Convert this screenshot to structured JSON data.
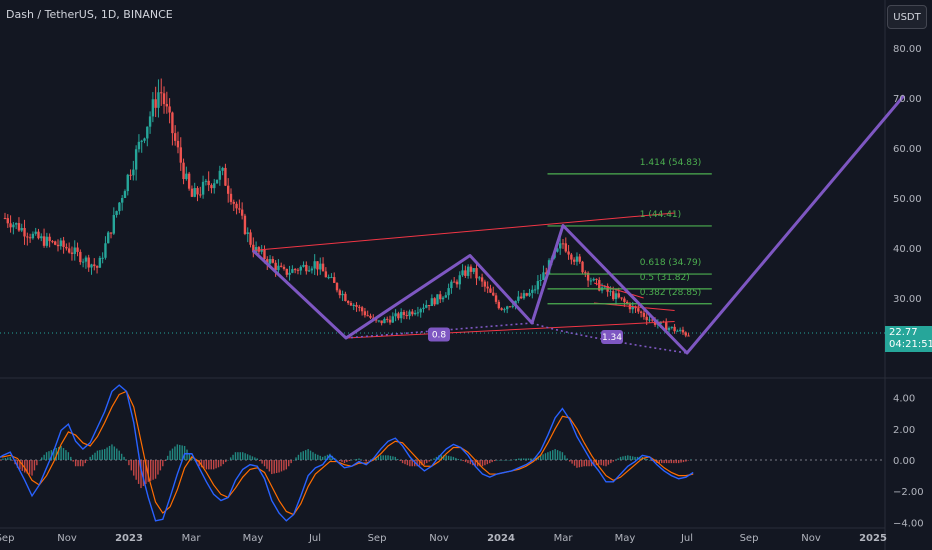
{
  "header": {
    "symbol_title": "Dash / TetherUS, 1D, BINANCE",
    "currency_button": "USDT"
  },
  "price_badge": {
    "price": "22.77",
    "countdown": "04:21:51"
  },
  "colors": {
    "background": "#131722",
    "up_candle": "#26a69a",
    "down_candle": "#ef5350",
    "pattern": "#7e57c2",
    "fib": "#4caf50",
    "trendline": "#f23645",
    "macd": "#2962ff",
    "signal": "#ff6d00"
  },
  "chart_data": [
    {
      "type": "candlestick",
      "name": "price",
      "yaxis_ticks": [
        "80.00",
        "70.00",
        "60.00",
        "50.00",
        "40.00",
        "30.00"
      ],
      "ylim": [
        18,
        86
      ],
      "grid": false,
      "xaxis_ticks": [
        "Sep",
        "Nov",
        "2023",
        "Mar",
        "May",
        "Jul",
        "Sep",
        "Nov",
        "2024",
        "Mar",
        "May",
        "Jul",
        "Sep",
        "Nov",
        "2025"
      ],
      "approx_close_path": [
        {
          "x": "Sep 2022",
          "y": 46
        },
        {
          "x": "Oct 2022",
          "y": 42
        },
        {
          "x": "Nov 2022",
          "y": 40
        },
        {
          "x": "Dec 2022",
          "y": 36
        },
        {
          "x": "Jan 2023",
          "y": 55
        },
        {
          "x": "Feb 2023",
          "y": 72
        },
        {
          "x": "Mar 2023",
          "y": 50
        },
        {
          "x": "Apr 2023",
          "y": 55
        },
        {
          "x": "May 2023",
          "y": 40
        },
        {
          "x": "Jun 2023",
          "y": 35
        },
        {
          "x": "Jul 2023",
          "y": 37
        },
        {
          "x": "Aug 2023",
          "y": 30
        },
        {
          "x": "Sep 2023",
          "y": 25
        },
        {
          "x": "Oct 2023",
          "y": 27
        },
        {
          "x": "Nov 2023",
          "y": 30
        },
        {
          "x": "Dec 2023",
          "y": 36
        },
        {
          "x": "Jan 2024",
          "y": 28
        },
        {
          "x": "Feb 2024",
          "y": 31
        },
        {
          "x": "Mar 2024",
          "y": 41
        },
        {
          "x": "Apr 2024",
          "y": 33
        },
        {
          "x": "May 2024",
          "y": 29
        },
        {
          "x": "Jun 2024",
          "y": 25
        },
        {
          "x": "Jul 2024",
          "y": 22.77
        }
      ],
      "fib_levels": [
        {
          "label": "1.414 (54.83)",
          "value": 54.83
        },
        {
          "label": "1 (44.41)",
          "value": 44.41
        },
        {
          "label": "0.618 (34.79)",
          "value": 34.79
        },
        {
          "label": "0.5 (31.82)",
          "value": 31.82
        },
        {
          "label": "0.382 (28.85)",
          "value": 28.85
        }
      ],
      "pattern_points": [
        {
          "x": "May 2023",
          "y": 39.5
        },
        {
          "x": "Aug 2023",
          "y": 22
        },
        {
          "x": "Dec 2023",
          "y": 38.5
        },
        {
          "x": "Feb 2024",
          "y": 25
        },
        {
          "x": "Mar 2024",
          "y": 44.5
        },
        {
          "x": "Jul 2024",
          "y": 19
        },
        {
          "x": "Feb 2025",
          "y": 70.5
        }
      ],
      "pattern_ratio_labels": [
        "0.8",
        "1.34"
      ],
      "last_price": 22.77
    },
    {
      "type": "line",
      "name": "macd",
      "yaxis_ticks": [
        "4.00",
        "2.00",
        "0.00",
        "−2.00",
        "−4.00"
      ],
      "ylim": [
        -4.2,
        5.2
      ],
      "series": [
        {
          "values": [
            0,
            0.3,
            0.5,
            -0.4,
            -1.3,
            -2.3,
            -1.6,
            -0.5,
            0.6,
            1.9,
            2.3,
            1.2,
            0.7,
            1.1,
            2.1,
            3.1,
            4.4,
            4.8,
            4.4,
            2.4,
            -0.6,
            -2.4,
            -3.9,
            -3.8,
            -2.4,
            -0.9,
            0.4,
            0.4,
            -0.5,
            -1.4,
            -2.2,
            -2.6,
            -2.4,
            -1.3,
            -0.6,
            -0.3,
            -0.4,
            -1.2,
            -2.6,
            -3.4,
            -3.9,
            -3.5,
            -2.3,
            -1.0,
            -0.5,
            -0.3,
            0.3,
            -0.1,
            -0.5,
            -0.4,
            -0.1,
            -0.3,
            0.1,
            0.7,
            1.2,
            1.4,
            0.9,
            0.2,
            -0.3,
            -0.7,
            -0.4,
            0.2,
            0.7,
            1.0,
            0.8,
            0.3,
            -0.4,
            -0.9,
            -1.1,
            -0.9,
            -0.8,
            -0.7,
            -0.5,
            -0.3,
            0.0,
            0.6,
            1.6,
            2.7,
            3.3,
            2.6,
            1.5,
            0.7,
            -0.1,
            -0.7,
            -1.4,
            -1.4,
            -0.9,
            -0.4,
            -0.1,
            0.3,
            0.2,
            -0.3,
            -0.7,
            -1.0,
            -1.2,
            -1.1,
            -0.8
          ]
        },
        {
          "values": [
            0.2,
            0.2,
            0.3,
            0.1,
            -0.5,
            -1.3,
            -1.6,
            -1.0,
            -0.1,
            1.0,
            1.8,
            1.6,
            1.1,
            0.9,
            1.5,
            2.4,
            3.4,
            4.2,
            4.4,
            3.4,
            1.2,
            -1.0,
            -2.7,
            -3.4,
            -3.0,
            -1.9,
            -0.5,
            0.2,
            -0.1,
            -0.8,
            -1.6,
            -2.2,
            -2.4,
            -1.8,
            -1.1,
            -0.6,
            -0.5,
            -0.8,
            -1.7,
            -2.6,
            -3.3,
            -3.5,
            -2.8,
            -1.7,
            -0.9,
            -0.5,
            -0.1,
            -0.1,
            -0.3,
            -0.4,
            -0.2,
            -0.2,
            0.0,
            0.4,
            0.9,
            1.2,
            1.1,
            0.6,
            0.1,
            -0.4,
            -0.4,
            -0.1,
            0.4,
            0.8,
            0.8,
            0.5,
            0.0,
            -0.5,
            -0.9,
            -0.9,
            -0.8,
            -0.7,
            -0.6,
            -0.4,
            -0.1,
            0.3,
            1.1,
            2.0,
            2.8,
            2.7,
            2.0,
            1.1,
            0.3,
            -0.4,
            -1.0,
            -1.3,
            -1.1,
            -0.7,
            -0.3,
            0.1,
            0.2,
            -0.1,
            -0.5,
            -0.8,
            -1.0,
            -1.0,
            -0.9
          ]
        }
      ]
    }
  ]
}
